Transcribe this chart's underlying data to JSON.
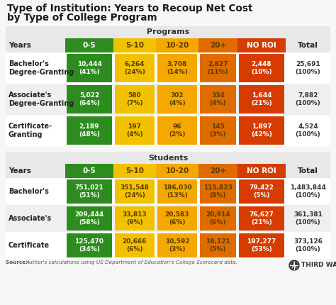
{
  "title_line1": "Type of Institution: Years to Recoup Net Cost",
  "title_line2": "by Type of College Program",
  "bg_color": "#f7f7f7",
  "table_bg": "#ffffff",
  "section_header_bg": "#e8e8e8",
  "col_colors": [
    "#2d8c1e",
    "#f2c200",
    "#f5a800",
    "#e06c00",
    "#d63b00",
    "#f7f7f7"
  ],
  "col_header_text_colors": [
    "#ffffff",
    "#5a3c00",
    "#5a3c00",
    "#5a3c00",
    "#ffffff",
    "#333333"
  ],
  "col_labels": [
    "0-5",
    "5-10",
    "10-20",
    "20+",
    "NO ROI",
    "Total"
  ],
  "programs_rows": [
    [
      "Bachelor's\nDegree-Granting",
      "10,444\n(41%)",
      "6,264\n(24%)",
      "3,708\n(14%)",
      "2,827\n(11%)",
      "2,448\n(10%)",
      "25,691\n(100%)"
    ],
    [
      "Associate's\nDegree-Granting",
      "5,022\n(64%)",
      "580\n(7%)",
      "302\n(4%)",
      "334\n(4%)",
      "1,644\n(21%)",
      "7,882\n(100%)"
    ],
    [
      "Certificate-\nGranting",
      "2,189\n(48%)",
      "197\n(4%)",
      "96\n(2%)",
      "145\n(3%)",
      "1,897\n(42%)",
      "4,524\n(100%)"
    ]
  ],
  "students_rows": [
    [
      "Bachelor's",
      "751,021\n(51%)",
      "351,548\n(24%)",
      "186,030\n(13%)",
      "115,823\n(8%)",
      "79,422\n(5%)",
      "1,483,844\n(100%)"
    ],
    [
      "Associate's",
      "209,444\n(58%)",
      "33,813\n(9%)",
      "20,583\n(6%)",
      "20,914\n(6%)",
      "76,627\n(21%)",
      "361,381\n(100%)"
    ],
    [
      "Certificate",
      "125,470\n(34%)",
      "20,666\n(6%)",
      "10,592\n(3%)",
      "19,121\n(5%)",
      "197,277\n(53%)",
      "373,126\n(100%)"
    ]
  ],
  "source_text": "Author's calculations using US Department of Education's College Scorecard data.",
  "row_bg_colors": [
    "#ffffff",
    "#efefef"
  ],
  "cell_text_colors": [
    "#ffffff",
    "#5a3c00",
    "#5a3c00",
    "#5a3c00",
    "#ffffff",
    "#333333"
  ],
  "years_label_color": "#333333",
  "section_label_color": "#333333"
}
